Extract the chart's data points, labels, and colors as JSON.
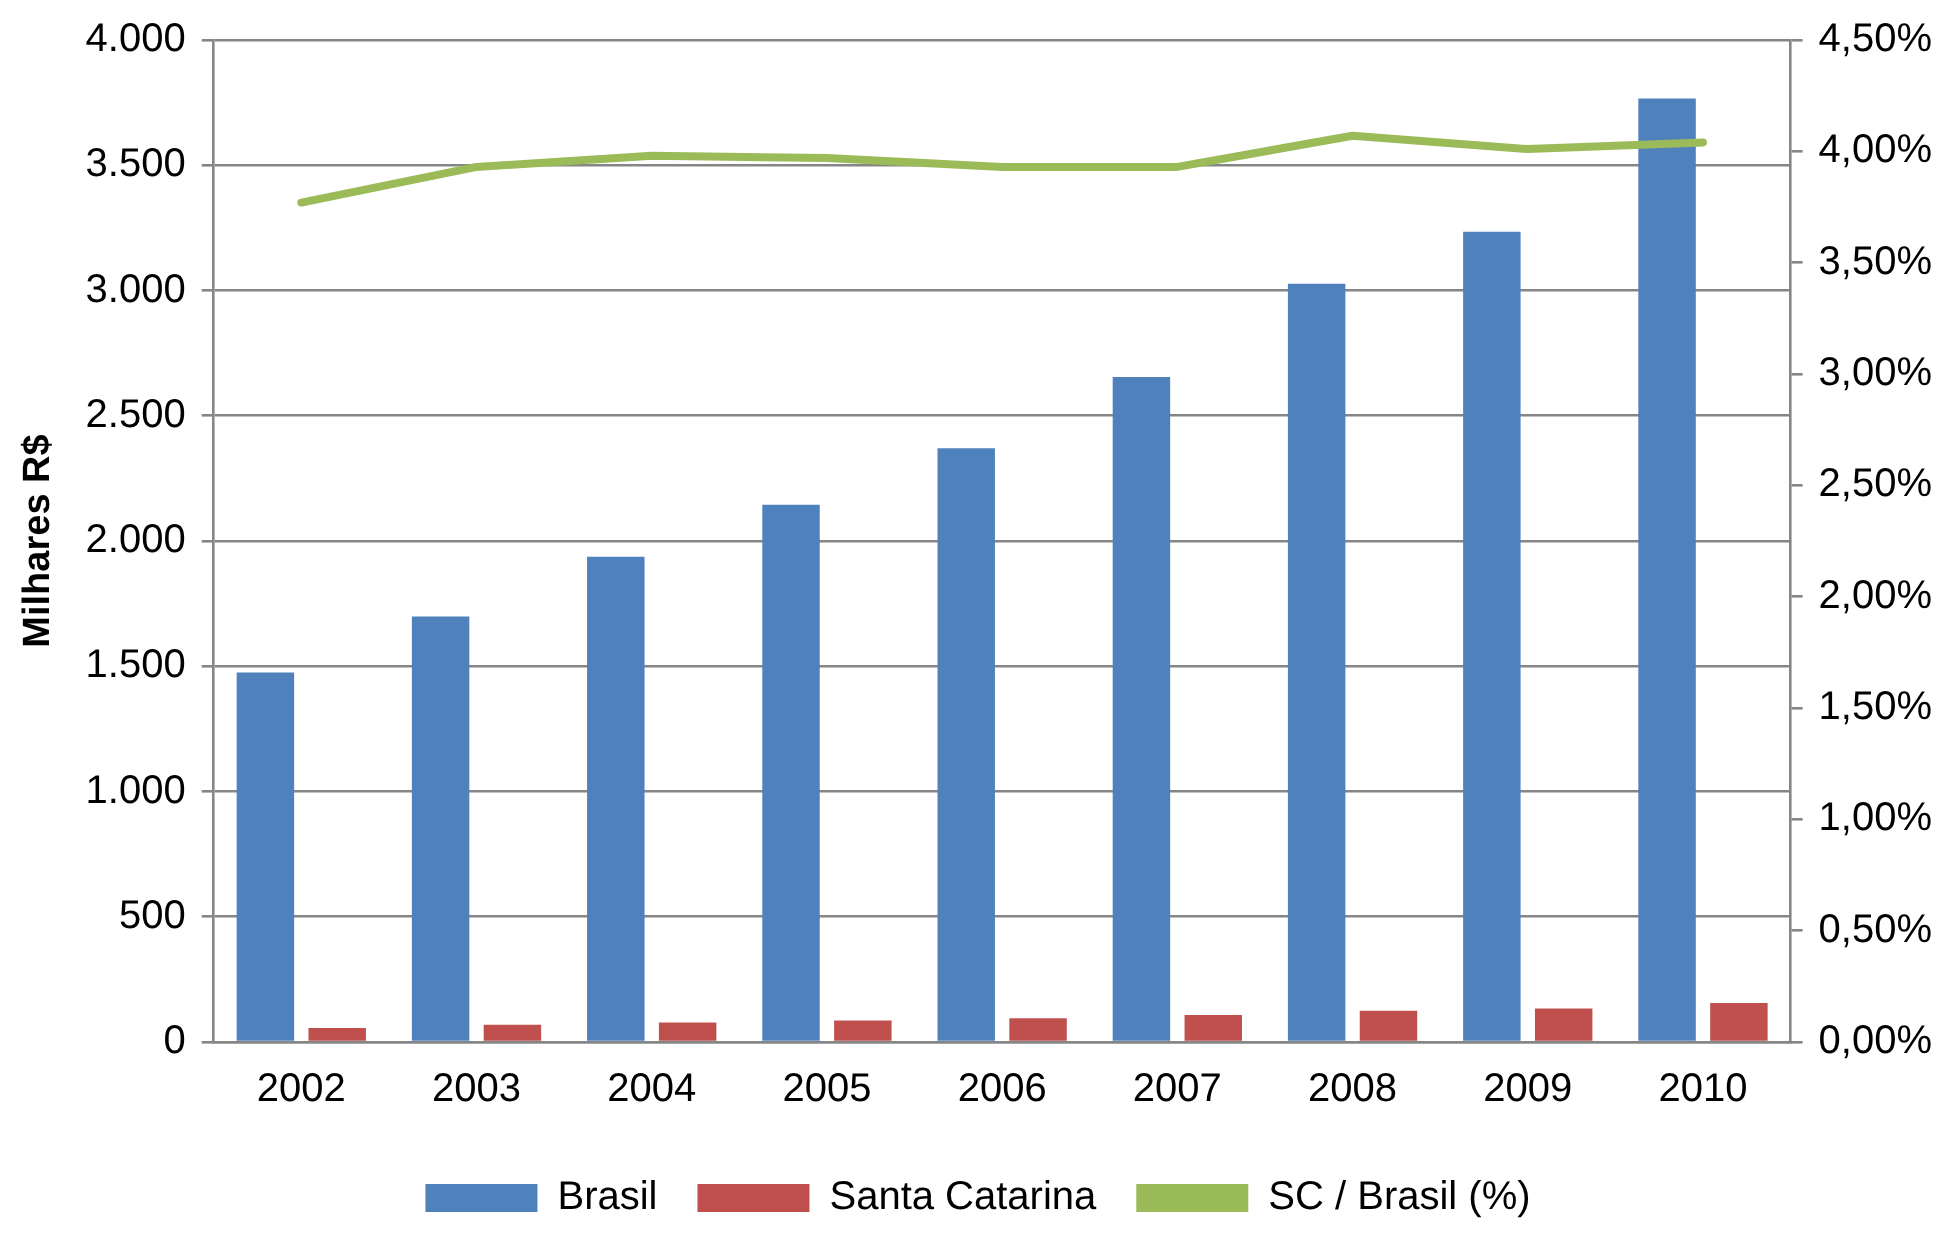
{
  "chart_data": {
    "type": "bar",
    "ylabel": "Milhares R$",
    "categories": [
      "2002",
      "2003",
      "2004",
      "2005",
      "2006",
      "2007",
      "2008",
      "2009",
      "2010"
    ],
    "series": [
      {
        "name": "Brasil",
        "color": "#4f81bd",
        "values": [
          1475,
          1699,
          1937,
          2145,
          2370,
          2655,
          3027,
          3235,
          3766
        ]
      },
      {
        "name": "Santa Catarina",
        "color": "#c0504d",
        "values": [
          56,
          69,
          78,
          86,
          95,
          108,
          125,
          134,
          156
        ]
      },
      {
        "name": "SC / Brasil (%)",
        "type": "line",
        "axis": "y2",
        "color": "#9bbb59",
        "values": [
          3.77,
          3.93,
          3.98,
          3.97,
          3.93,
          3.93,
          4.07,
          4.01,
          4.04
        ]
      }
    ],
    "ylim": [
      0,
      4000
    ],
    "yticks": [
      {
        "value": 0,
        "label": "0"
      },
      {
        "value": 500,
        "label": "500"
      },
      {
        "value": 1000,
        "label": "1.000"
      },
      {
        "value": 1500,
        "label": "1.500"
      },
      {
        "value": 2000,
        "label": "2.000"
      },
      {
        "value": 2500,
        "label": "2.500"
      },
      {
        "value": 3000,
        "label": "3.000"
      },
      {
        "value": 3500,
        "label": "3.500"
      },
      {
        "value": 4000,
        "label": "4.000"
      }
    ],
    "y2lim": [
      0,
      4.5
    ],
    "y2ticks": [
      {
        "value": 0,
        "label": "0,00%"
      },
      {
        "value": 0.5,
        "label": "0,50%"
      },
      {
        "value": 1,
        "label": "1,00%"
      },
      {
        "value": 1.5,
        "label": "1,50%"
      },
      {
        "value": 2,
        "label": "2,00%"
      },
      {
        "value": 2.5,
        "label": "2,50%"
      },
      {
        "value": 3,
        "label": "3,00%"
      },
      {
        "value": 3.5,
        "label": "3,50%"
      },
      {
        "value": 4,
        "label": "4,00%"
      },
      {
        "value": 4.5,
        "label": "4,50%"
      }
    ],
    "grid": "y",
    "legend": "bottom",
    "marker": "none",
    "line_style": "solid"
  }
}
